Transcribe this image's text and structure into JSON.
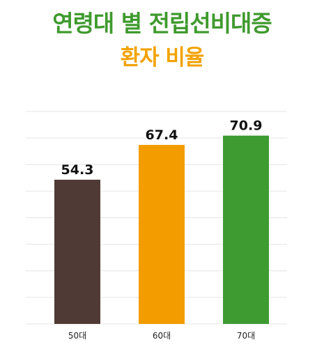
{
  "title": {
    "line1": "연령대 별 전립선비대증",
    "line2": "환자 비율"
  },
  "colors": {
    "title_line1": "#3f9a2e",
    "title_line2": "#f2a200",
    "grid": "#e4e4e4"
  },
  "chart_data": {
    "type": "bar",
    "categories": [
      "50대",
      "60대",
      "70대"
    ],
    "values": [
      54.3,
      67.4,
      70.9
    ],
    "value_labels": [
      "54.3",
      "67.4",
      "70.9"
    ],
    "bar_colors": [
      "#4f3a35",
      "#f29c00",
      "#3d9b31"
    ],
    "ylim": [
      0,
      80
    ],
    "grid": true,
    "gridlines": 9
  }
}
